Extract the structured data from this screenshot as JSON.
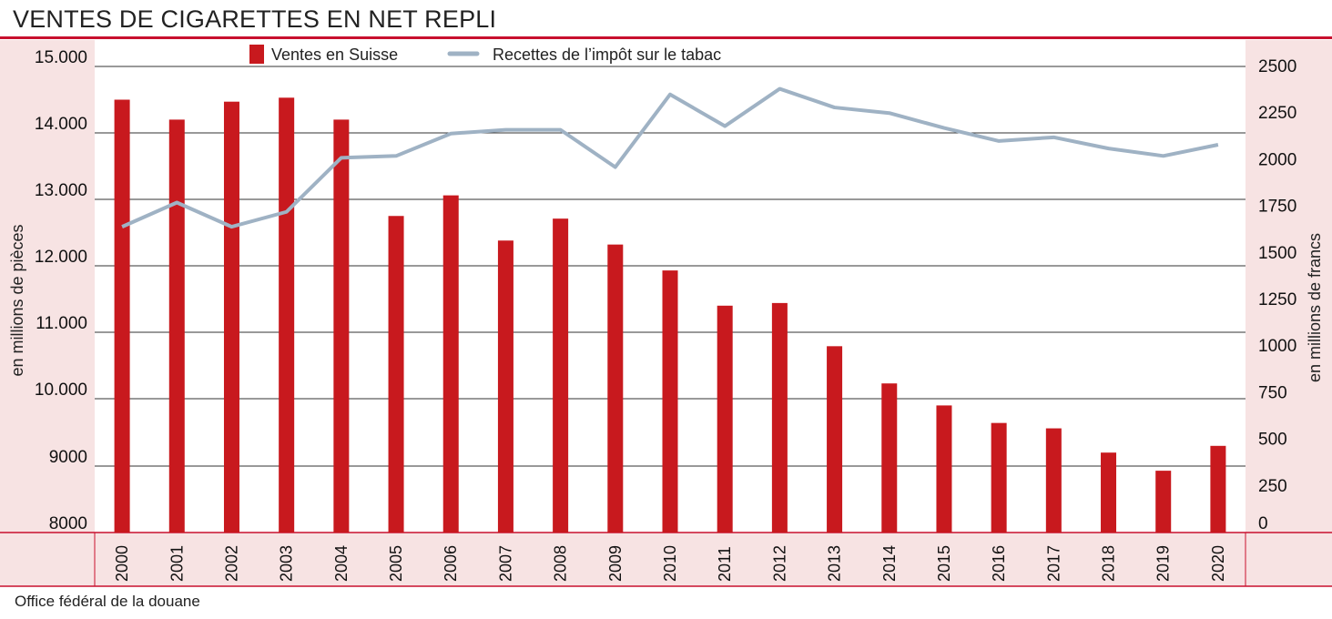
{
  "title": "VENTES DE CIGARETTES EN NET REPLI",
  "source": "Office fédéral de la douane",
  "colors": {
    "bars": "#c8191e",
    "line": "#9fb2c4",
    "panel": "#f7e3e3",
    "accent": "#c8102e"
  },
  "chart_data": {
    "type": "bar",
    "categories": [
      "2000",
      "2001",
      "2002",
      "2003",
      "2004",
      "2005",
      "2006",
      "2007",
      "2008",
      "2009",
      "2010",
      "2011",
      "2012",
      "2013",
      "2014",
      "2015",
      "2016",
      "2017",
      "2018",
      "2019",
      "2020"
    ],
    "series": [
      {
        "name": "Ventes en Suisse",
        "type": "bar",
        "axis": "left",
        "values": [
          14500,
          14200,
          14470,
          14530,
          14200,
          12750,
          13060,
          12380,
          12710,
          12320,
          11930,
          11400,
          11440,
          10790,
          10230,
          9900,
          9640,
          9560,
          9200,
          8930,
          9300
        ]
      },
      {
        "name": "Recettes de l’impôt sur le tabac",
        "type": "line",
        "axis": "right",
        "values": [
          1640,
          1770,
          1640,
          1720,
          2010,
          2020,
          2140,
          2160,
          2160,
          1960,
          2350,
          2180,
          2380,
          2280,
          2250,
          2170,
          2100,
          2120,
          2060,
          2020,
          2080
        ]
      }
    ],
    "left_axis": {
      "label": "en millions de pièces",
      "ticks": [
        "15.000",
        "14.000",
        "13.000",
        "12.000",
        "11.000",
        "10.000",
        "9000",
        "8000"
      ],
      "tick_values": [
        15000,
        14000,
        13000,
        12000,
        11000,
        10000,
        9000,
        8000
      ],
      "range": [
        8000,
        15000
      ]
    },
    "right_axis": {
      "label": "en millions de francs",
      "ticks": [
        "2500",
        "2250",
        "2000",
        "1750",
        "1500",
        "1250",
        "1000",
        "750",
        "500",
        "250",
        "0"
      ],
      "tick_values": [
        2500,
        2250,
        2000,
        1750,
        1500,
        1250,
        1000,
        750,
        500,
        250,
        0
      ],
      "range": [
        0,
        2500
      ]
    },
    "legend_position": "top",
    "grid": true
  }
}
